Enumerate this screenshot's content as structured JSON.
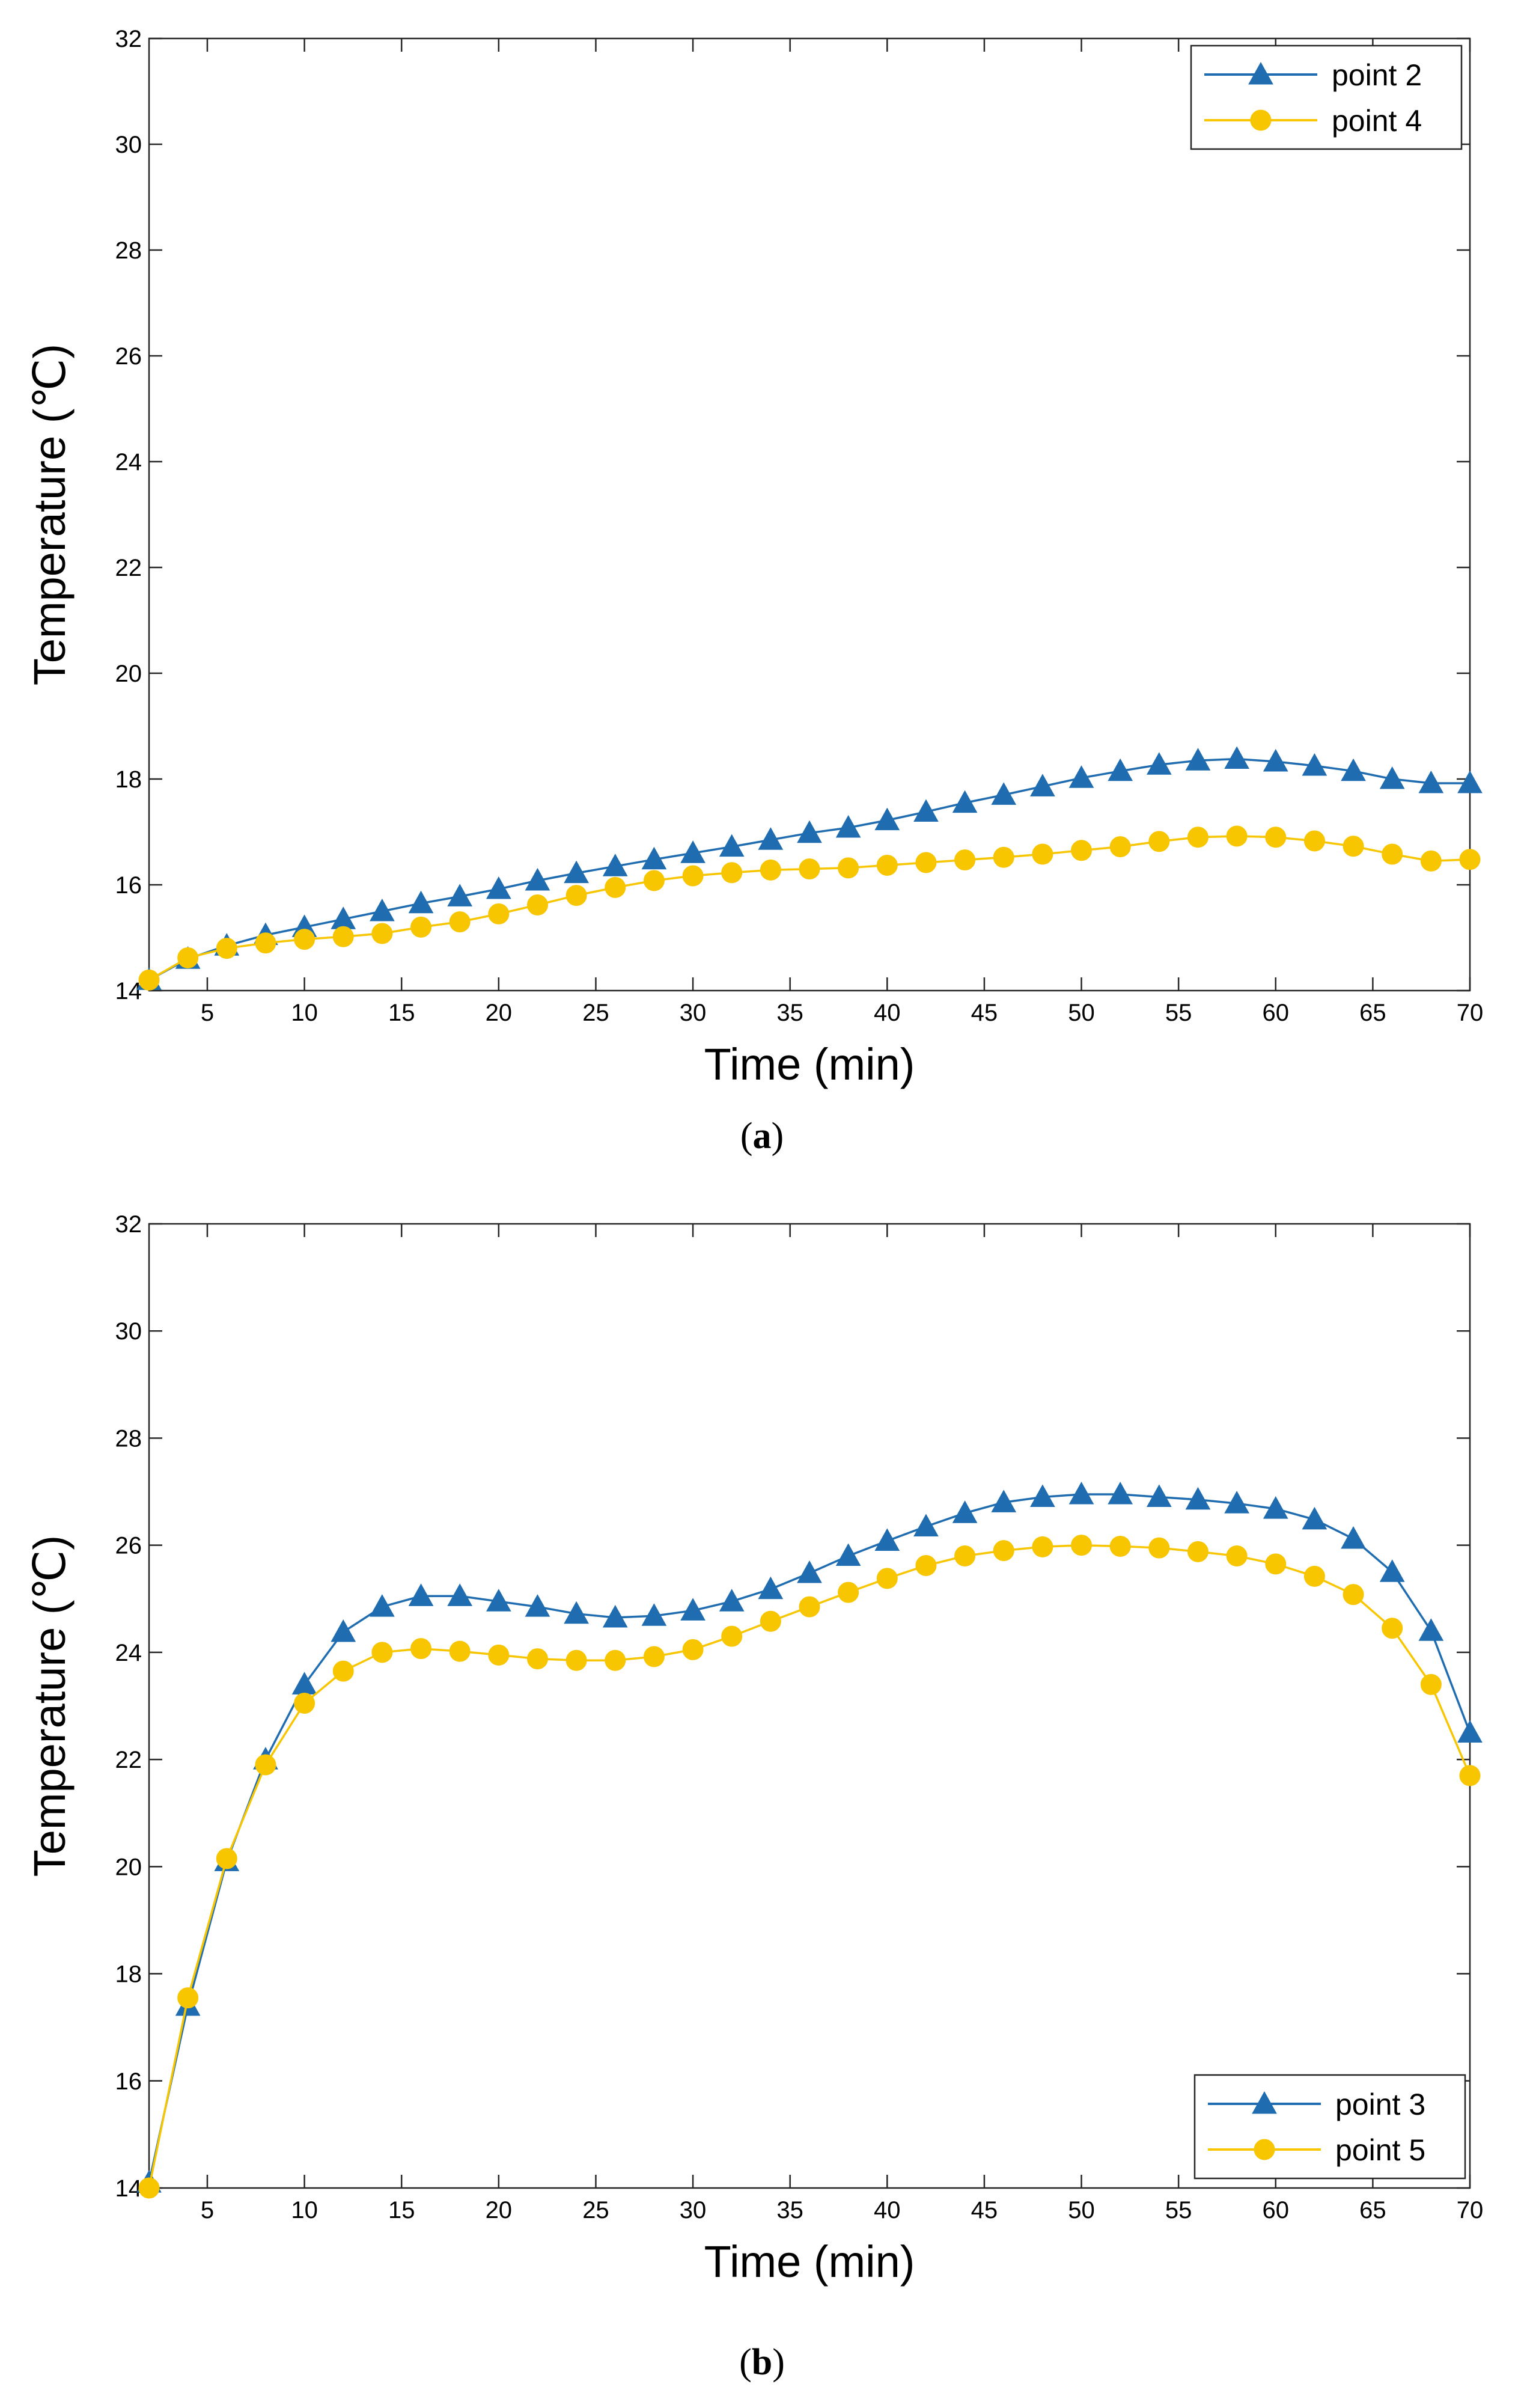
{
  "chart_data": [
    {
      "type": "line",
      "panel_label": "a",
      "xlabel": "Time (min)",
      "ylabel": "Temperature (℃)",
      "xlim": [
        2,
        70
      ],
      "ylim": [
        14,
        32
      ],
      "xticks": [
        5,
        10,
        15,
        20,
        25,
        30,
        35,
        40,
        45,
        50,
        55,
        60,
        65,
        70
      ],
      "yticks": [
        14,
        16,
        18,
        20,
        22,
        24,
        26,
        28,
        30,
        32
      ],
      "grid": false,
      "legend_position": "top-right",
      "x": [
        2,
        4,
        6,
        8,
        10,
        12,
        14,
        16,
        18,
        20,
        22,
        24,
        26,
        28,
        30,
        32,
        34,
        36,
        38,
        40,
        42,
        44,
        46,
        48,
        50,
        52,
        54,
        56,
        58,
        60,
        62,
        64,
        66,
        68,
        70
      ],
      "series": [
        {
          "name": "point 2",
          "color": "#1f6db0",
          "marker": "triangle",
          "values": [
            14.2,
            14.6,
            14.85,
            15.05,
            15.2,
            15.35,
            15.5,
            15.65,
            15.78,
            15.92,
            16.08,
            16.22,
            16.35,
            16.48,
            16.6,
            16.72,
            16.85,
            16.98,
            17.08,
            17.22,
            17.38,
            17.55,
            17.7,
            17.86,
            18.02,
            18.15,
            18.27,
            18.35,
            18.38,
            18.33,
            18.25,
            18.15,
            18.0,
            17.92,
            17.92
          ]
        },
        {
          "name": "point 4",
          "color": "#f7c600",
          "marker": "circle",
          "values": [
            14.2,
            14.62,
            14.8,
            14.9,
            14.97,
            15.02,
            15.08,
            15.2,
            15.3,
            15.45,
            15.62,
            15.8,
            15.95,
            16.08,
            16.17,
            16.23,
            16.28,
            16.3,
            16.32,
            16.37,
            16.42,
            16.47,
            16.52,
            16.58,
            16.65,
            16.72,
            16.82,
            16.9,
            16.92,
            16.9,
            16.83,
            16.73,
            16.58,
            16.45,
            16.48
          ]
        }
      ]
    },
    {
      "type": "line",
      "panel_label": "b",
      "xlabel": "Time (min)",
      "ylabel": "Temperature (℃)",
      "xlim": [
        2,
        70
      ],
      "ylim": [
        14,
        32
      ],
      "xticks": [
        5,
        10,
        15,
        20,
        25,
        30,
        35,
        40,
        45,
        50,
        55,
        60,
        65,
        70
      ],
      "yticks": [
        14,
        16,
        18,
        20,
        22,
        24,
        26,
        28,
        30,
        32
      ],
      "grid": false,
      "legend_position": "bottom-right",
      "x": [
        2,
        4,
        6,
        8,
        10,
        12,
        14,
        16,
        18,
        20,
        22,
        24,
        26,
        28,
        30,
        32,
        34,
        36,
        38,
        40,
        42,
        44,
        46,
        48,
        50,
        52,
        54,
        56,
        58,
        60,
        62,
        64,
        66,
        68,
        70
      ],
      "series": [
        {
          "name": "point 3",
          "color": "#1f6db0",
          "marker": "triangle",
          "values": [
            14.1,
            17.4,
            20.1,
            22.0,
            23.4,
            24.38,
            24.85,
            25.05,
            25.05,
            24.95,
            24.85,
            24.72,
            24.65,
            24.68,
            24.78,
            24.95,
            25.18,
            25.48,
            25.8,
            26.08,
            26.35,
            26.6,
            26.8,
            26.9,
            26.95,
            26.95,
            26.9,
            26.85,
            26.78,
            26.68,
            26.48,
            26.12,
            25.5,
            24.4,
            22.5
          ]
        },
        {
          "name": "point 5",
          "color": "#f7c600",
          "marker": "circle",
          "values": [
            14.0,
            17.55,
            20.15,
            21.9,
            23.05,
            23.65,
            24.0,
            24.07,
            24.02,
            23.95,
            23.88,
            23.85,
            23.85,
            23.92,
            24.05,
            24.3,
            24.58,
            24.85,
            25.12,
            25.38,
            25.62,
            25.8,
            25.9,
            25.97,
            26.0,
            25.98,
            25.95,
            25.88,
            25.8,
            25.65,
            25.42,
            25.08,
            24.45,
            23.4,
            21.7
          ]
        }
      ]
    }
  ]
}
